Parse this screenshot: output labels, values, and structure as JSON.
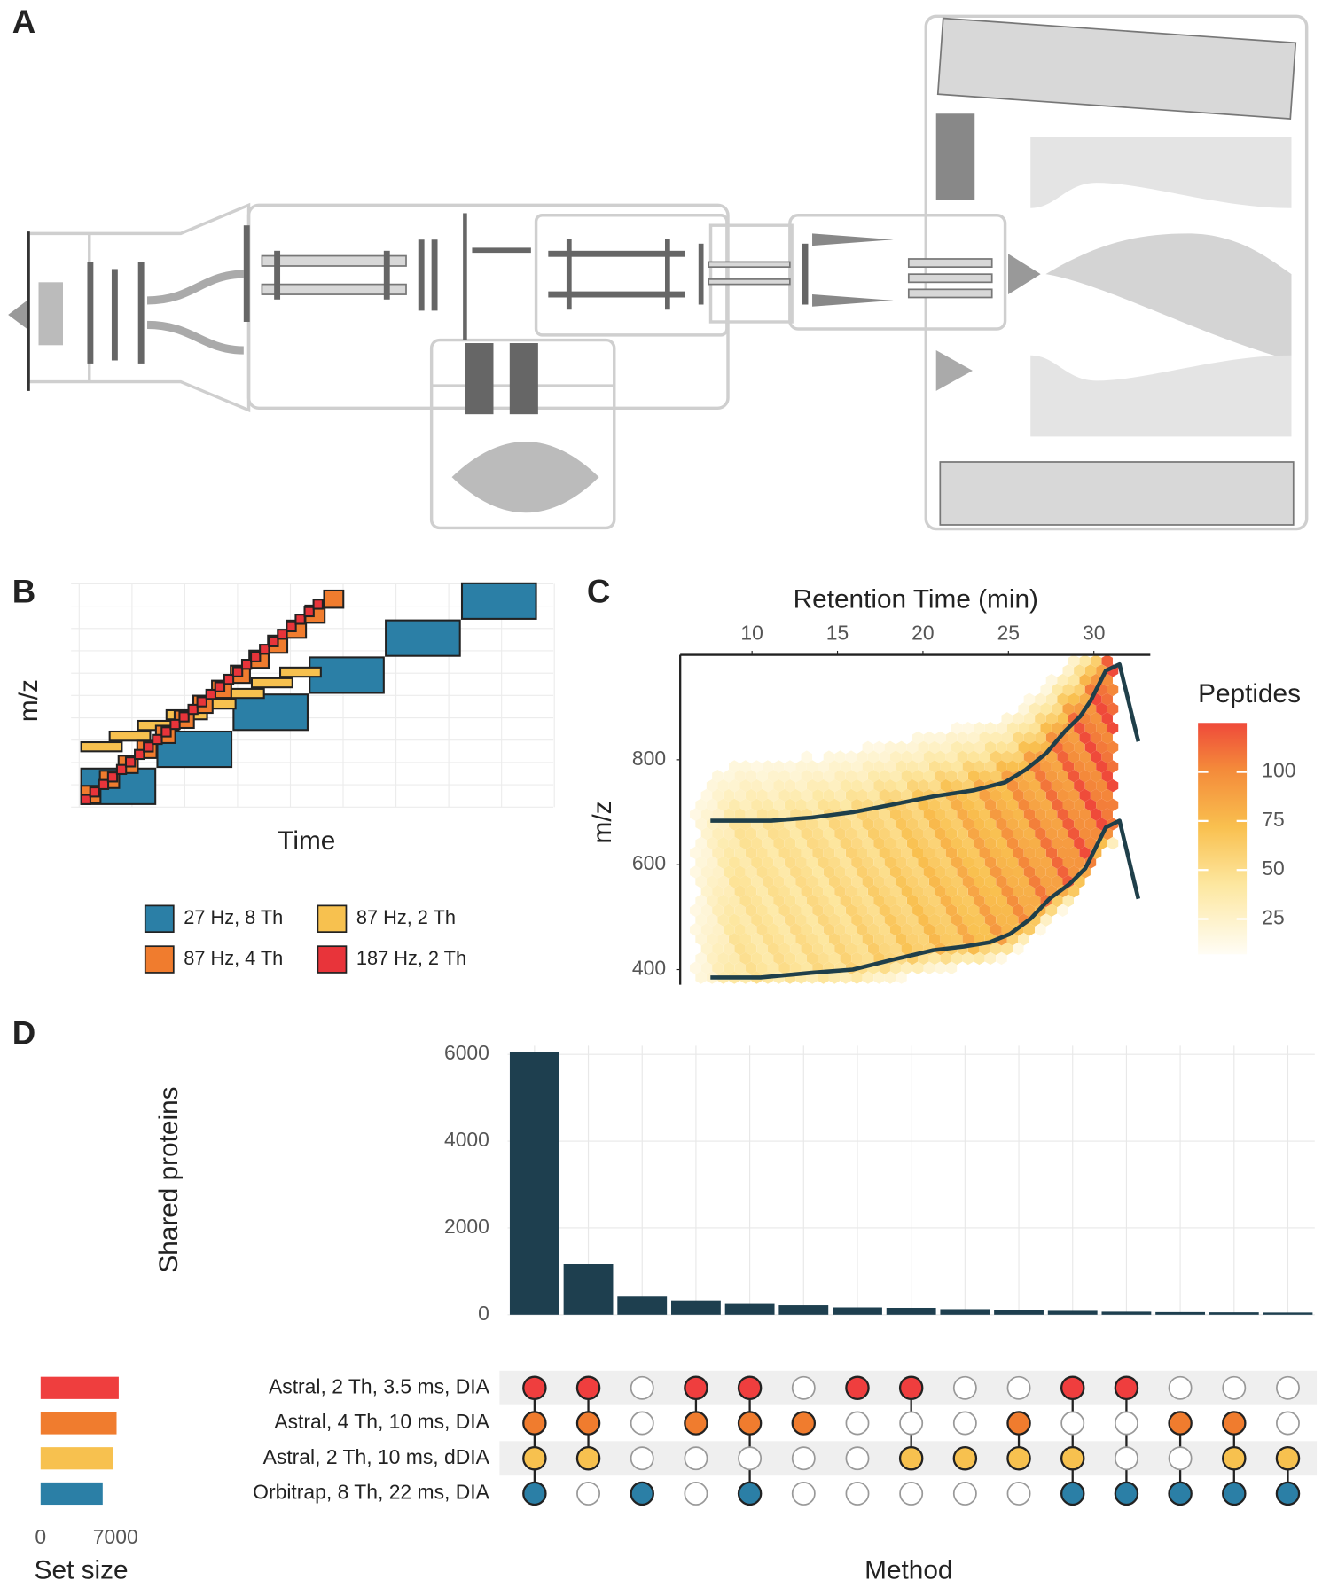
{
  "panel_labels": [
    "A",
    "B",
    "C",
    "D"
  ],
  "chart_data": [
    {
      "type": "window_scheme",
      "xlabel": "Time",
      "ylabel": "m/z",
      "series": [
        {
          "name": "27 Hz, 8 Th",
          "color": "#2b7fa6"
        },
        {
          "name": "87 Hz, 2 Th",
          "color": "#f7c14f"
        },
        {
          "name": "87 Hz, 4 Th",
          "color": "#f07c2e"
        },
        {
          "name": "187 Hz, 2 Th",
          "color": "#e8343a"
        }
      ]
    },
    {
      "type": "hexbin",
      "xlabel": "Retention Time (min)",
      "ylabel": "m/z",
      "xlim": [
        5.8,
        33.3
      ],
      "xticks": [
        10,
        15,
        20,
        25,
        30
      ],
      "ylim": [
        371,
        1000
      ],
      "yticks": [
        400,
        600,
        800
      ],
      "colorbar_title": "Peptides",
      "colorbar_lim": [
        7,
        125
      ],
      "colorbar_ticks": [
        25,
        50,
        75,
        100
      ],
      "line_color": "#1f3f4a",
      "series": [
        {
          "x": [
            7.57,
            11.13,
            13.5,
            15.9,
            18.25,
            20.6,
            23.0,
            24.8,
            26.0,
            27.2,
            28.3,
            29.2,
            29.8,
            30.7,
            31.5,
            32.6
          ],
          "values": [
            684,
            684,
            690,
            700,
            715,
            730,
            742,
            757,
            781,
            812,
            854,
            883,
            912,
            970,
            982,
            835
          ]
        },
        {
          "x": [
            7.57,
            10.5,
            13.5,
            15.9,
            18.25,
            20.6,
            22.4,
            23.9,
            25.1,
            26.3,
            27.4,
            28.6,
            29.5,
            30.1,
            30.7,
            31.5,
            32.6
          ],
          "values": [
            385,
            385,
            394,
            400,
            419,
            437,
            444,
            452,
            468,
            497,
            535,
            564,
            593,
            632,
            671,
            684,
            535
          ]
        }
      ]
    },
    {
      "type": "upset",
      "ylabel": "Shared proteins",
      "xlabel": "Method",
      "values": [
        6050,
        1180,
        420,
        330,
        250,
        220,
        170,
        160,
        130,
        110,
        90,
        70,
        60,
        55,
        50
      ],
      "ylim": [
        0,
        6200
      ],
      "yticks": [
        0,
        2000,
        4000,
        6000
      ],
      "bar_color": "#1e3f4f",
      "sets": [
        {
          "name": "Astral, 2 Th, 3.5 ms, DIA",
          "color": "#ef3e3e",
          "size": 7300
        },
        {
          "name": "Astral, 4 Th, 10 ms, DIA",
          "color": "#f07c2e",
          "size": 7100
        },
        {
          "name": "Astral, 2 Th, 10 ms, dDIA",
          "color": "#f7c14f",
          "size": 6800
        },
        {
          "name": "Orbitrap, 8 Th, 22 ms, DIA",
          "color": "#2b7fa6",
          "size": 5800
        }
      ],
      "set_size_label": "Set size",
      "set_size_lim": [
        0,
        7400
      ],
      "set_size_ticks": [
        0,
        7000
      ],
      "membership": [
        [
          true,
          true,
          true,
          true
        ],
        [
          true,
          true,
          true,
          false
        ],
        [
          false,
          false,
          false,
          true
        ],
        [
          true,
          true,
          false,
          false
        ],
        [
          true,
          true,
          false,
          true
        ],
        [
          false,
          true,
          false,
          false
        ],
        [
          true,
          false,
          false,
          false
        ],
        [
          true,
          false,
          true,
          false
        ],
        [
          false,
          false,
          true,
          false
        ],
        [
          false,
          true,
          true,
          false
        ],
        [
          true,
          false,
          true,
          true
        ],
        [
          true,
          false,
          false,
          true
        ],
        [
          false,
          true,
          false,
          true
        ],
        [
          false,
          true,
          true,
          true
        ],
        [
          false,
          false,
          true,
          true
        ]
      ]
    }
  ]
}
